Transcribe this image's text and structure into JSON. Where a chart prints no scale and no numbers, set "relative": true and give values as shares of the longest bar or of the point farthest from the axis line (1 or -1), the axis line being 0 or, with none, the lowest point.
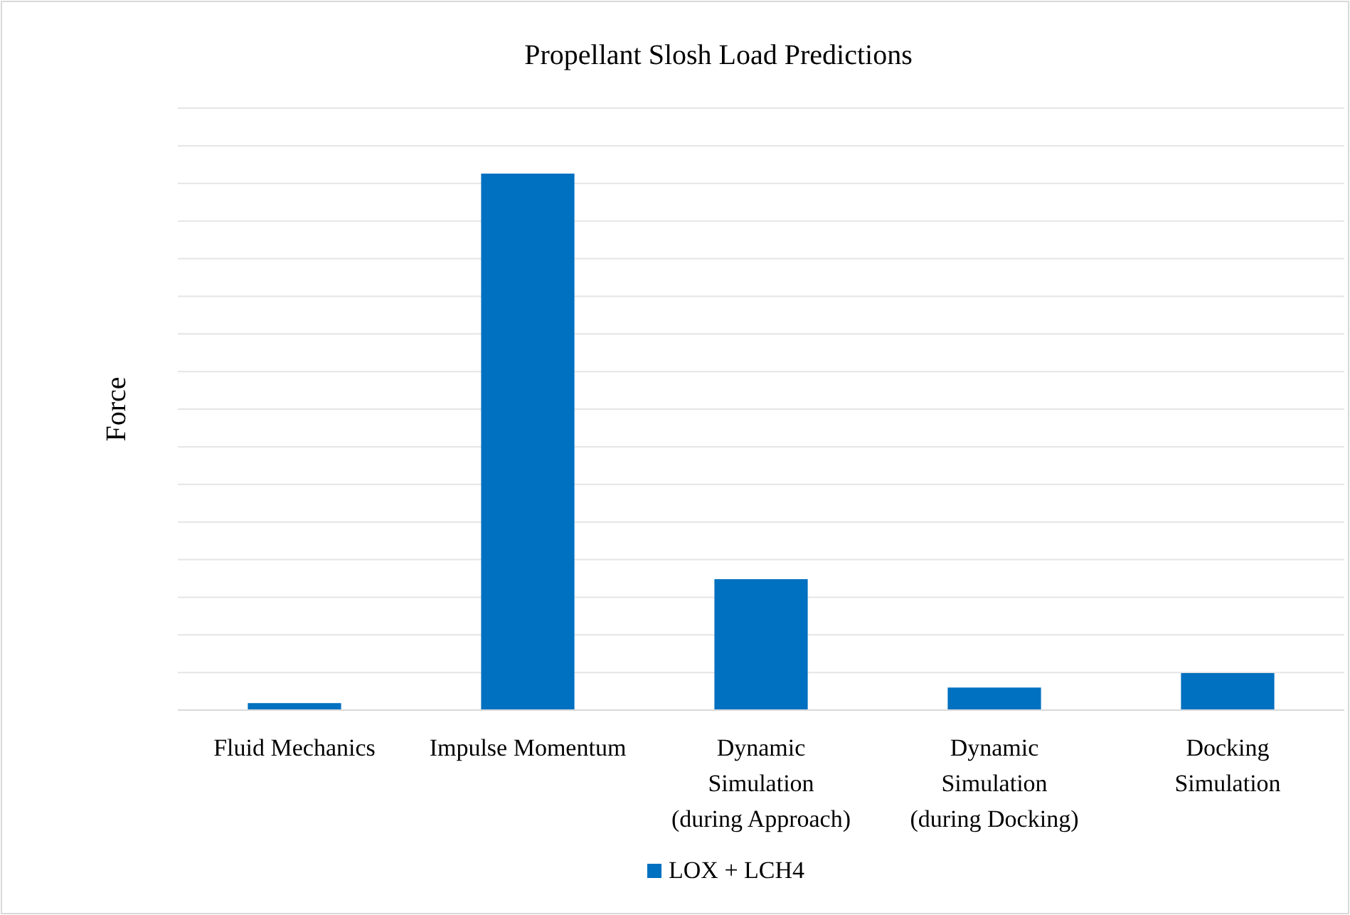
{
  "chart_data": {
    "type": "bar",
    "title": "Propellant Slosh Load Predictions",
    "ylabel": "Force",
    "categories": [
      "Fluid Mechanics",
      "Impulse Momentum",
      "Dynamic Simulation (during Approach)",
      "Dynamic Simulation (during Docking)",
      "Docking Simulation"
    ],
    "series": [
      {
        "name": "LOX + LCH4",
        "color": "#0070c0",
        "values": [
          0.013,
          1,
          0.244,
          0.042,
          0.069
        ]
      }
    ],
    "relative": true,
    "grid": "y",
    "legend": "bottom"
  }
}
